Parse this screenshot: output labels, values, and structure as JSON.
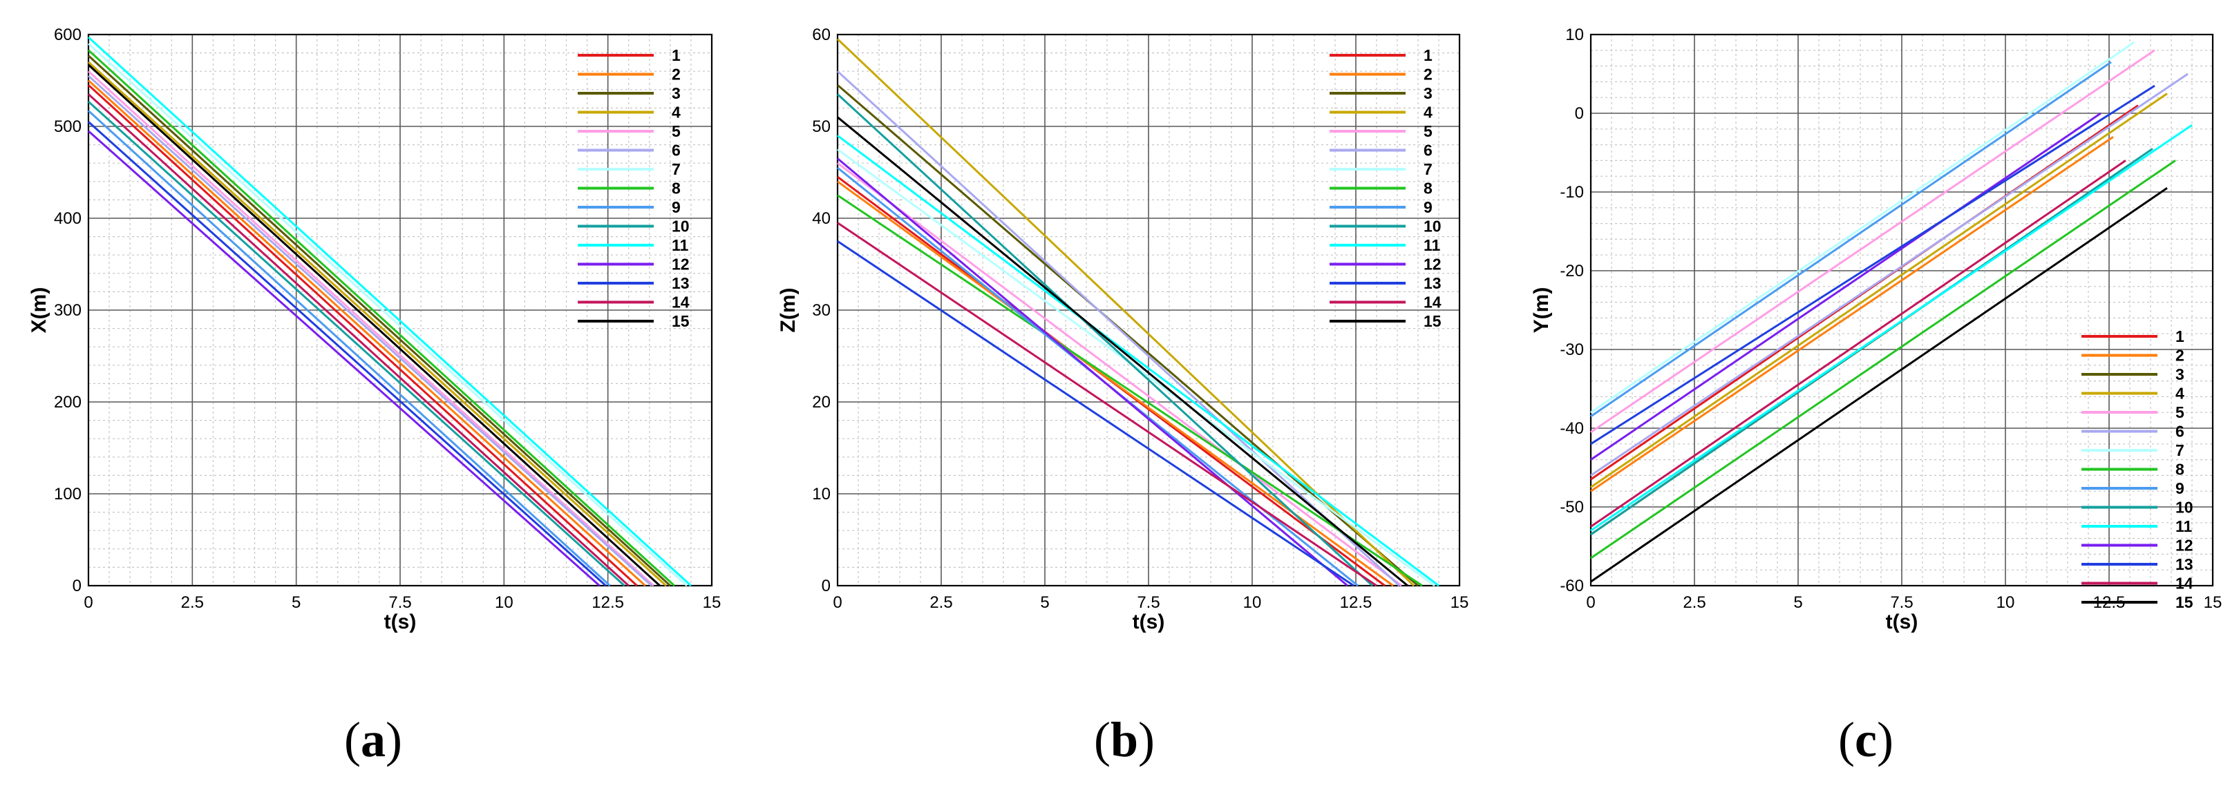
{
  "colors": {
    "1": "#e41a1c",
    "2": "#ff7f0e",
    "3": "#5a5a00",
    "4": "#c8a800",
    "5": "#ff9ee6",
    "6": "#a9a9f0",
    "7": "#b5ffff",
    "8": "#22c522",
    "9": "#4b9cf0",
    "10": "#15a0a0",
    "11": "#00ffff",
    "12": "#7a1ef0",
    "13": "#1f3fe0",
    "14": "#c4165c",
    "15": "#000000"
  },
  "legend_labels": [
    "1",
    "2",
    "3",
    "4",
    "5",
    "6",
    "7",
    "8",
    "9",
    "10",
    "11",
    "12",
    "13",
    "14",
    "15"
  ],
  "captions": {
    "a": {
      "open": "(",
      "letter": "a",
      "close": ")"
    },
    "b": {
      "open": "(",
      "letter": "b",
      "close": ")"
    },
    "c": {
      "open": "(",
      "letter": "c",
      "close": ")"
    }
  },
  "chart_data": [
    {
      "id": "a",
      "type": "line",
      "title": "",
      "xlabel": "t(s)",
      "ylabel": "X(m)",
      "xlim": [
        0,
        15
      ],
      "ylim": [
        0,
        600
      ],
      "xticks": [
        0,
        2.5,
        5,
        7.5,
        10,
        12.5,
        15
      ],
      "xtick_labels": [
        "0",
        "2.5",
        "5",
        "7.5",
        "10",
        "12.5",
        "15"
      ],
      "yticks": [
        0,
        100,
        200,
        300,
        400,
        500,
        600
      ],
      "ytick_labels": [
        "0",
        "100",
        "200",
        "300",
        "400",
        "500",
        "600"
      ],
      "grid": true,
      "legend_position": "top-right",
      "series": [
        {
          "name": "1",
          "x": [
            0,
            13.2
          ],
          "y": [
            545,
            0
          ]
        },
        {
          "name": "2",
          "x": [
            0,
            13.4
          ],
          "y": [
            550,
            0
          ]
        },
        {
          "name": "3",
          "x": [
            0,
            14.0
          ],
          "y": [
            577,
            0
          ]
        },
        {
          "name": "4",
          "x": [
            0,
            13.9
          ],
          "y": [
            570,
            0
          ]
        },
        {
          "name": "5",
          "x": [
            0,
            13.6
          ],
          "y": [
            560,
            0
          ]
        },
        {
          "name": "6",
          "x": [
            0,
            13.55
          ],
          "y": [
            555,
            0
          ]
        },
        {
          "name": "7",
          "x": [
            0,
            14.4
          ],
          "y": [
            590,
            0
          ]
        },
        {
          "name": "8",
          "x": [
            0,
            14.1
          ],
          "y": [
            583,
            0
          ]
        },
        {
          "name": "9",
          "x": [
            0,
            12.55
          ],
          "y": [
            517,
            0
          ]
        },
        {
          "name": "10",
          "x": [
            0,
            12.9
          ],
          "y": [
            527,
            0
          ]
        },
        {
          "name": "11",
          "x": [
            0,
            14.5
          ],
          "y": [
            597,
            0
          ]
        },
        {
          "name": "12",
          "x": [
            0,
            12.3
          ],
          "y": [
            495,
            0
          ]
        },
        {
          "name": "13",
          "x": [
            0,
            12.45
          ],
          "y": [
            505,
            0
          ]
        },
        {
          "name": "14",
          "x": [
            0,
            13.0
          ],
          "y": [
            535,
            0
          ]
        },
        {
          "name": "15",
          "x": [
            0,
            13.75
          ],
          "y": [
            567,
            0
          ]
        }
      ]
    },
    {
      "id": "b",
      "type": "line",
      "title": "",
      "xlabel": "t(s)",
      "ylabel": "Z(m)",
      "xlim": [
        0,
        15
      ],
      "ylim": [
        0,
        60
      ],
      "xticks": [
        0,
        2.5,
        5,
        7.5,
        10,
        12.5,
        15
      ],
      "xtick_labels": [
        "0",
        "2.5",
        "5",
        "7.5",
        "10",
        "12.5",
        "15"
      ],
      "yticks": [
        0,
        10,
        20,
        30,
        40,
        50,
        60
      ],
      "ytick_labels": [
        "0",
        "10",
        "20",
        "30",
        "40",
        "50",
        "60"
      ],
      "grid": true,
      "legend_position": "top-right",
      "series": [
        {
          "name": "1",
          "x": [
            0,
            13.2
          ],
          "y": [
            44.5,
            0
          ]
        },
        {
          "name": "2",
          "x": [
            0,
            13.4
          ],
          "y": [
            44.0,
            0
          ]
        },
        {
          "name": "3",
          "x": [
            0,
            14.0
          ],
          "y": [
            54.5,
            0
          ]
        },
        {
          "name": "4",
          "x": [
            0,
            13.9
          ],
          "y": [
            59.5,
            0
          ]
        },
        {
          "name": "5",
          "x": [
            0,
            13.6
          ],
          "y": [
            46.0,
            0
          ]
        },
        {
          "name": "6",
          "x": [
            0,
            13.55
          ],
          "y": [
            56.0,
            0
          ]
        },
        {
          "name": "7",
          "x": [
            0,
            14.4
          ],
          "y": [
            47.5,
            0
          ]
        },
        {
          "name": "8",
          "x": [
            0,
            14.1
          ],
          "y": [
            42.5,
            0
          ]
        },
        {
          "name": "9",
          "x": [
            0,
            12.55
          ],
          "y": [
            45.5,
            0
          ]
        },
        {
          "name": "10",
          "x": [
            0,
            12.9
          ],
          "y": [
            53.5,
            0
          ]
        },
        {
          "name": "11",
          "x": [
            0,
            14.5
          ],
          "y": [
            49.0,
            0
          ]
        },
        {
          "name": "12",
          "x": [
            0,
            12.3
          ],
          "y": [
            46.5,
            0
          ]
        },
        {
          "name": "13",
          "x": [
            0,
            12.45
          ],
          "y": [
            37.5,
            0
          ]
        },
        {
          "name": "14",
          "x": [
            0,
            13.0
          ],
          "y": [
            39.5,
            0
          ]
        },
        {
          "name": "15",
          "x": [
            0,
            13.75
          ],
          "y": [
            51.0,
            0
          ]
        }
      ]
    },
    {
      "id": "c",
      "type": "line",
      "title": "",
      "xlabel": "t(s)",
      "ylabel": "Y(m)",
      "xlim": [
        0,
        15
      ],
      "ylim": [
        -60,
        10
      ],
      "xticks": [
        0,
        2.5,
        5,
        7.5,
        10,
        12.5,
        15
      ],
      "xtick_labels": [
        "0",
        "2.5",
        "5",
        "7.5",
        "10",
        "12.5",
        "15"
      ],
      "yticks": [
        -60,
        -50,
        -40,
        -30,
        -20,
        -10,
        0,
        10
      ],
      "ytick_labels": [
        "-60",
        "-50",
        "-40",
        "-30",
        "-20",
        "-10",
        "0",
        "10"
      ],
      "grid": true,
      "legend_position": "bottom-right",
      "series": [
        {
          "name": "1",
          "x": [
            0,
            13.2
          ],
          "y": [
            -46.5,
            1
          ]
        },
        {
          "name": "2",
          "x": [
            0,
            12.6
          ],
          "y": [
            -48.0,
            -3
          ]
        },
        {
          "name": "3",
          "x": [
            0,
            12.6
          ],
          "y": [
            -53.5,
            -8
          ]
        },
        {
          "name": "4",
          "x": [
            0,
            13.9
          ],
          "y": [
            -47.5,
            2.5
          ]
        },
        {
          "name": "5",
          "x": [
            0,
            13.6
          ],
          "y": [
            -40.5,
            8
          ]
        },
        {
          "name": "6",
          "x": [
            0,
            14.4
          ],
          "y": [
            -46.0,
            5
          ]
        },
        {
          "name": "7",
          "x": [
            0,
            13.1
          ],
          "y": [
            -38.0,
            9
          ]
        },
        {
          "name": "8",
          "x": [
            0,
            14.1
          ],
          "y": [
            -56.5,
            -6
          ]
        },
        {
          "name": "9",
          "x": [
            0,
            12.55
          ],
          "y": [
            -38.5,
            6.5
          ]
        },
        {
          "name": "10",
          "x": [
            0,
            13.55
          ],
          "y": [
            -53.5,
            -4.5
          ]
        },
        {
          "name": "11",
          "x": [
            0,
            14.5
          ],
          "y": [
            -53.0,
            -1.5
          ]
        },
        {
          "name": "12",
          "x": [
            0,
            12.3
          ],
          "y": [
            -44.0,
            0
          ]
        },
        {
          "name": "13",
          "x": [
            0,
            13.6
          ],
          "y": [
            -42.0,
            3.5
          ]
        },
        {
          "name": "14",
          "x": [
            0,
            12.9
          ],
          "y": [
            -52.5,
            -6
          ]
        },
        {
          "name": "15",
          "x": [
            0,
            13.9
          ],
          "y": [
            -59.5,
            -9.5
          ]
        }
      ]
    }
  ]
}
